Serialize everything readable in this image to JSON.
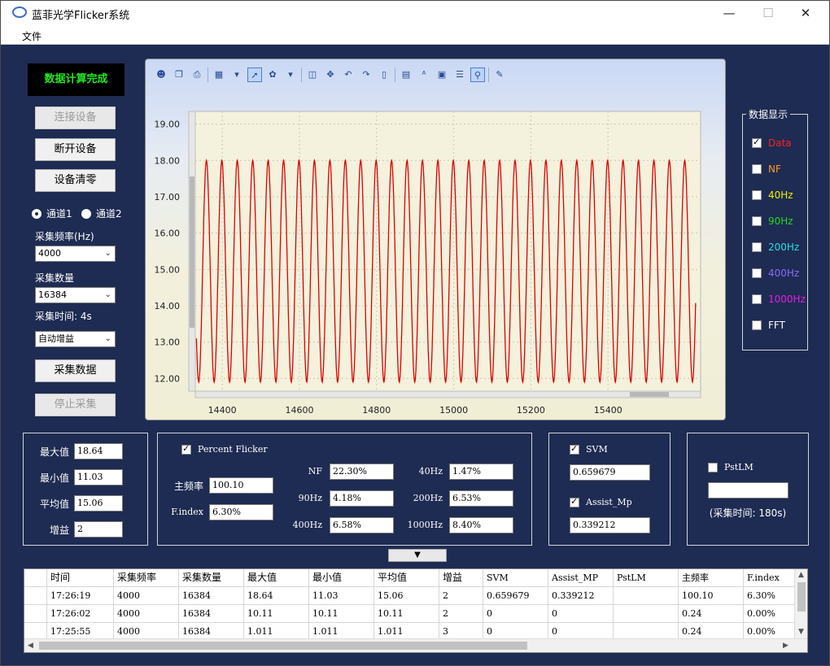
{
  "window": {
    "title": "蓝菲光学Flicker系统",
    "minimize": "—",
    "maximize": "☐",
    "close": "✕"
  },
  "menu": {
    "file": "文件"
  },
  "status": {
    "text": "数据计算完成",
    "color": "#22e822"
  },
  "buttons": {
    "connect": "连接设备",
    "disconnect": "断开设备",
    "zero": "设备清零",
    "acquire": "采集数据",
    "stop": "停止采集"
  },
  "channels": {
    "ch1": "通道1",
    "ch2": "通道2",
    "selected": "ch1"
  },
  "acq": {
    "freq_label": "采集频率(Hz)",
    "freq_value": "4000",
    "count_label": "采集数量",
    "count_value": "16384",
    "time_label": "采集时间: 4s",
    "gain_value": "自动增益"
  },
  "chart_data": {
    "type": "line",
    "title": "",
    "xlabel": "",
    "ylabel": "",
    "xlim": [
      14330,
      15640
    ],
    "ylim": [
      11.65,
      19.35
    ],
    "x_ticks": [
      "14400",
      "14600",
      "14800",
      "15000",
      "15200",
      "15400"
    ],
    "y_ticks": [
      "19.00",
      "18.00",
      "17.00",
      "16.00",
      "15.00",
      "14.00",
      "13.00",
      "12.00"
    ],
    "grid": true,
    "series": [
      {
        "color": "#e00000",
        "waveform": "periodic",
        "period_samples": 40.0,
        "max": 18.0,
        "min": 11.9,
        "x_start": 14333,
        "x_end": 15627,
        "start_value": 13.1,
        "end_value": 12.2
      }
    ]
  },
  "display_group": {
    "title": "数据显示",
    "items": [
      {
        "label": "Data",
        "checked": true,
        "color": "#ff2020"
      },
      {
        "label": "NF",
        "checked": false,
        "color": "#ff9a1e"
      },
      {
        "label": "40Hz",
        "checked": false,
        "color": "#f4f000"
      },
      {
        "label": "90Hz",
        "checked": false,
        "color": "#22d822"
      },
      {
        "label": "200Hz",
        "checked": false,
        "color": "#22e0e0"
      },
      {
        "label": "400Hz",
        "checked": false,
        "color": "#8a6cff"
      },
      {
        "label": "1000Hz",
        "checked": false,
        "color": "#e020e0"
      },
      {
        "label": "FFT",
        "checked": false,
        "color": "#ffffff"
      }
    ]
  },
  "stats": {
    "max_label": "最大值",
    "max": "18.64",
    "min_label": "最小值",
    "min": "11.03",
    "avg_label": "平均值",
    "avg": "15.06",
    "gain_label": "增益",
    "gain": "2"
  },
  "flicker": {
    "checkbox_label": "Percent Flicker",
    "checked": true,
    "main_freq_label": "主频率",
    "main_freq": "100.10",
    "findex_label": "F.index",
    "findex": "6.30%",
    "nf_label": "NF",
    "nf": "22.30%",
    "f90_label": "90Hz",
    "f90": "4.18%",
    "f400_label": "400Hz",
    "f400": "6.58%",
    "f40_label": "40Hz",
    "f40": "1.47%",
    "f200_label": "200Hz",
    "f200": "6.53%",
    "f1000_label": "1000Hz",
    "f1000": "8.40%"
  },
  "svm": {
    "svm_label": "SVM",
    "svm_checked": true,
    "svm": "0.659679",
    "amp_label": "Assist_Mp",
    "amp_checked": true,
    "amp": "0.339212"
  },
  "pstlm": {
    "label": "PstLM",
    "checked": false,
    "value": "",
    "note": "(采集时间: 180s)"
  },
  "expand": "▼",
  "table": {
    "headers": [
      "时间",
      "采集频率",
      "采集数量",
      "最大值",
      "最小值",
      "平均值",
      "增益",
      "SVM",
      "Assist_MP",
      "PstLM",
      "主频率",
      "F.index"
    ],
    "rows": [
      [
        "17:26:19",
        "4000",
        "16384",
        "18.64",
        "11.03",
        "15.06",
        "2",
        "0.659679",
        "0.339212",
        "",
        "100.10",
        "6.30%"
      ],
      [
        "17:26:02",
        "4000",
        "16384",
        "10.11",
        "10.11",
        "10.11",
        "2",
        "0",
        "0",
        "",
        "0.24",
        "0.00%"
      ],
      [
        "17:25:55",
        "4000",
        "16384",
        "1.011",
        "1.011",
        "1.011",
        "3",
        "0",
        "0",
        "",
        "0.24",
        "0.00%"
      ]
    ]
  }
}
